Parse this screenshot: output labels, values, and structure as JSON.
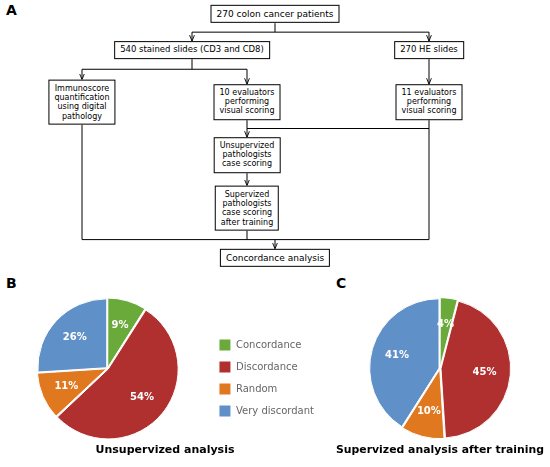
{
  "chart_data": [
    {
      "type": "flowchart",
      "annotations": [
        "A",
        "270 colon cancer patients",
        "540 stained slides (CD3 and CD8)",
        "270 HE slides",
        "Immunoscore\nquantification\nusing digital\npathology",
        "10 evaluators\nperforming\nvisual scoring",
        "11 evaluators\nperforming\nvisual scoring",
        "Unsupervized\npathologists\ncase scoring",
        "Supervized\npathologists\ncase scoring\nafter training",
        "Concordance analysis"
      ]
    },
    {
      "type": "pie",
      "title": "Unsupervized analysis",
      "annotations": [
        "B"
      ],
      "categories": [
        "Concordance",
        "Discordance",
        "Random",
        "Very discordant"
      ],
      "values": [
        9,
        54,
        11,
        26
      ],
      "value_labels": [
        "9%",
        "54%",
        "11%",
        "26%"
      ],
      "colors": [
        "#6aaa3a",
        "#b03030",
        "#e07820",
        "#6090c8"
      ],
      "data_labels": true,
      "legend": "right"
    },
    {
      "type": "pie",
      "title": "Supervized analysis after training",
      "annotations": [
        "C"
      ],
      "categories": [
        "Concordance",
        "Discordance",
        "Random",
        "Very discordant"
      ],
      "values": [
        4,
        45,
        10,
        41
      ],
      "value_labels": [
        "4%",
        "45%",
        "10%",
        "41%"
      ],
      "colors": [
        "#6aaa3a",
        "#b03030",
        "#e07820",
        "#6090c8"
      ],
      "data_labels": true
    }
  ]
}
